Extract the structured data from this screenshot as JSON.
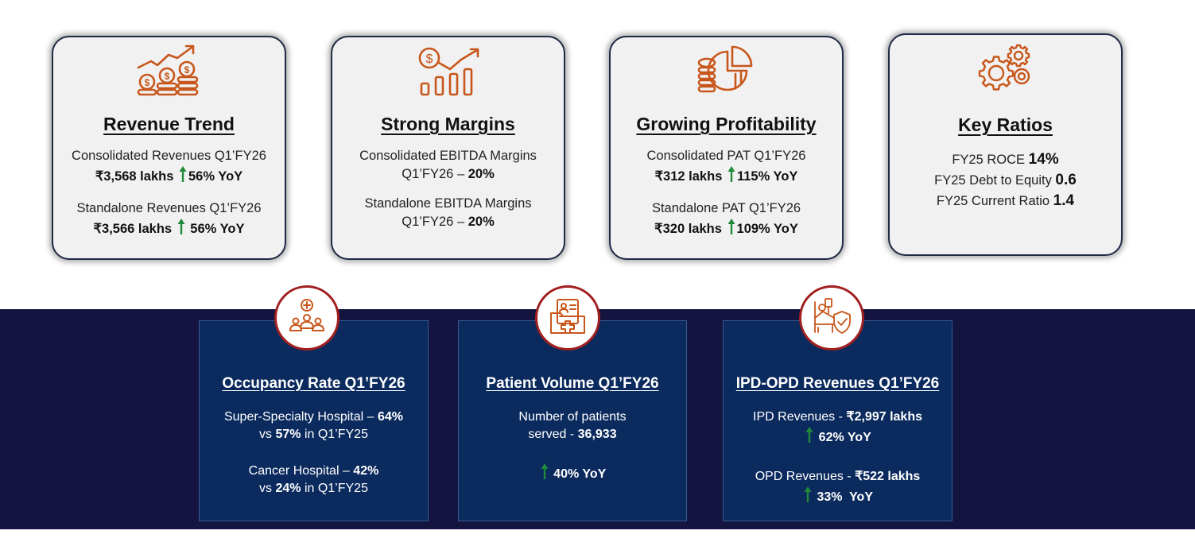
{
  "colors": {
    "icon_orange": "#c8561a",
    "up_arrow_green": "#1e8a3a",
    "navy_band": "#131440",
    "panel_blue": "#0b2a5e",
    "circle_border": "#a21f1f"
  },
  "cards": [
    {
      "icon": "revenue-growth-coins-icon",
      "title": "Revenue Trend",
      "lines": [
        {
          "label": "Consolidated Revenues Q1’FY26",
          "value": "₹3,568 lakhs",
          "change": "56% YoY"
        },
        {
          "label": "Standalone Revenues Q1’FY26",
          "value": "₹3,566 lakhs",
          "change": "56% YoY"
        }
      ]
    },
    {
      "icon": "dollar-bar-chart-icon",
      "title": "Strong Margins",
      "lines": [
        {
          "label": "Consolidated EBITDA Margins",
          "period": "Q1’FY26 –",
          "value": "20%"
        },
        {
          "label": "Standalone EBITDA Margins",
          "period": "Q1’FY26 –",
          "value": "20%"
        }
      ]
    },
    {
      "icon": "coins-pie-chart-icon",
      "title": "Growing Profitability",
      "lines": [
        {
          "label": "Consolidated PAT Q1’FY26",
          "value": "₹312 lakhs",
          "change": "115% YoY"
        },
        {
          "label": "Standalone PAT Q1’FY26",
          "value": "₹320 lakhs",
          "change": "109% YoY"
        }
      ]
    },
    {
      "icon": "gears-icon",
      "title": "Key Ratios",
      "ratios": [
        {
          "label": "FY25 ROCE",
          "value": "14%"
        },
        {
          "label": "FY25 Debt to Equity",
          "value": "0.6"
        },
        {
          "label": "FY25 Current Ratio",
          "value": "1.4"
        }
      ]
    }
  ],
  "panels": [
    {
      "icon": "medical-team-icon",
      "title": "Occupancy Rate Q1’FY26",
      "items": [
        {
          "label": "Super-Specialty Hospital –",
          "value": "64%",
          "vs_prefix": "vs",
          "vs_value": "57%",
          "vs_suffix": "in Q1’FY25"
        },
        {
          "label": "Cancer Hospital –",
          "value": "42%",
          "vs_prefix": "vs",
          "vs_value": "24%",
          "vs_suffix": "in Q1’FY25"
        }
      ]
    },
    {
      "icon": "patient-record-folder-icon",
      "title": "Patient Volume Q1’FY26",
      "line1": "Number of patients",
      "line2_label": "served -",
      "line2_value": "36,933",
      "change": "40% YoY"
    },
    {
      "icon": "hospital-bed-shield-icon",
      "title": "IPD-OPD Revenues Q1’FY26",
      "items": [
        {
          "label": "IPD Revenues -",
          "value": "₹2,997 lakhs",
          "change": "62% YoY"
        },
        {
          "label": "OPD Revenues -",
          "value": "₹522 lakhs",
          "change": "33%  YoY"
        }
      ]
    }
  ]
}
